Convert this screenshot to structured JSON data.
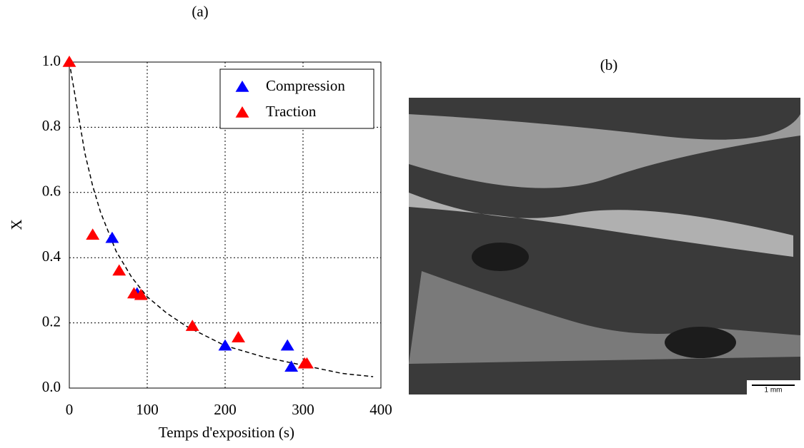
{
  "chart_data": {
    "type": "scatter",
    "title": "(a)",
    "x_label": "Temps d'exposition (s)",
    "y_label": "X",
    "xlim": [
      0,
      400
    ],
    "ylim": [
      0,
      1
    ],
    "xticks": [
      0,
      100,
      200,
      300,
      400
    ],
    "yticks": [
      {
        "value": 0,
        "label": "0.0"
      },
      0.2,
      0.4,
      0.6,
      0.8,
      {
        "value": 1,
        "label": "1.0"
      }
    ],
    "grid": true,
    "legend": "upper right",
    "series": [
      {
        "name": "Compression",
        "color": "#0000ff",
        "x": [
          55,
          87,
          200,
          280,
          285
        ],
        "values": [
          0.46,
          0.29,
          0.13,
          0.13,
          0.065
        ]
      },
      {
        "name": "Traction",
        "color": "#ff0000",
        "x": [
          0,
          30,
          64,
          83,
          92,
          158,
          217,
          302,
          305
        ],
        "values": [
          1.0,
          0.47,
          0.36,
          0.29,
          0.285,
          0.19,
          0.155,
          0.075,
          0.075
        ]
      }
    ],
    "fit_curve": {
      "color": "#000000",
      "style": "dashed",
      "x": [
        0,
        10,
        20,
        30,
        40,
        50,
        60,
        80,
        100,
        125,
        150,
        175,
        200,
        250,
        300,
        350,
        390
      ],
      "values": [
        1.0,
        0.86,
        0.72,
        0.62,
        0.54,
        0.48,
        0.42,
        0.34,
        0.28,
        0.23,
        0.19,
        0.16,
        0.13,
        0.095,
        0.07,
        0.045,
        0.035
      ]
    }
  },
  "image_panel": {
    "label": "(b)",
    "scale_bar": "1 mm"
  }
}
